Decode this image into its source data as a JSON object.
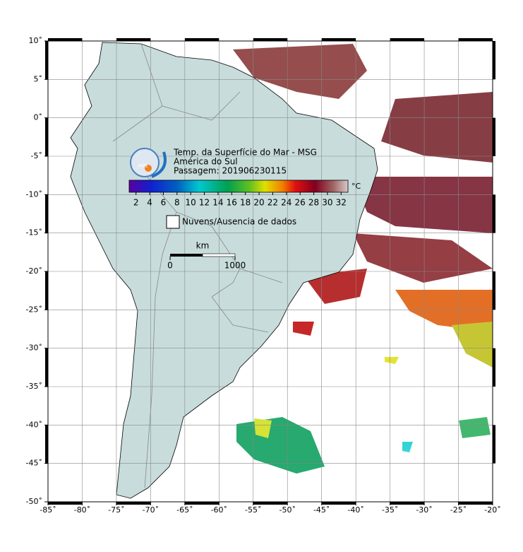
{
  "map": {
    "lon_ticks": [
      {
        "value": -85,
        "label": "-85˚"
      },
      {
        "value": -80,
        "label": "-80˚"
      },
      {
        "value": -75,
        "label": "-75˚"
      },
      {
        "value": -70,
        "label": "-70˚"
      },
      {
        "value": -65,
        "label": "-65˚"
      },
      {
        "value": -60,
        "label": "-60˚"
      },
      {
        "value": -55,
        "label": "-55˚"
      },
      {
        "value": -50,
        "label": "-50˚"
      },
      {
        "value": -45,
        "label": "-45˚"
      },
      {
        "value": -40,
        "label": "-40˚"
      },
      {
        "value": -35,
        "label": "-35˚"
      },
      {
        "value": -30,
        "label": "-30˚"
      },
      {
        "value": -25,
        "label": "-25˚"
      },
      {
        "value": -20,
        "label": "-20˚"
      }
    ],
    "lat_ticks": [
      {
        "value": 10,
        "label": "10˚"
      },
      {
        "value": 5,
        "label": "5˚"
      },
      {
        "value": 0,
        "label": "0˚"
      },
      {
        "value": -5,
        "label": "-5˚"
      },
      {
        "value": -10,
        "label": "-10˚"
      },
      {
        "value": -15,
        "label": "-15˚"
      },
      {
        "value": -20,
        "label": "-20˚"
      },
      {
        "value": -25,
        "label": "-25˚"
      },
      {
        "value": -30,
        "label": "-30˚"
      },
      {
        "value": -35,
        "label": "-35˚"
      },
      {
        "value": -40,
        "label": "-40˚"
      },
      {
        "value": -45,
        "label": "-45˚"
      },
      {
        "value": -50,
        "label": "-50˚"
      }
    ]
  },
  "legend": {
    "logo": "INPE",
    "title": [
      "Temp. da Superfície do Mar - MSG",
      "América do Sul",
      "Passagem: 201906230115"
    ],
    "colorbar_ticks": [
      2,
      4,
      6,
      8,
      10,
      12,
      14,
      16,
      18,
      20,
      22,
      24,
      26,
      28,
      30,
      32
    ],
    "unit": "°C",
    "nodata": "Nuvens/Ausencia de dados",
    "scale_unit": "km",
    "scale_ticks": [
      0,
      1000
    ]
  }
}
